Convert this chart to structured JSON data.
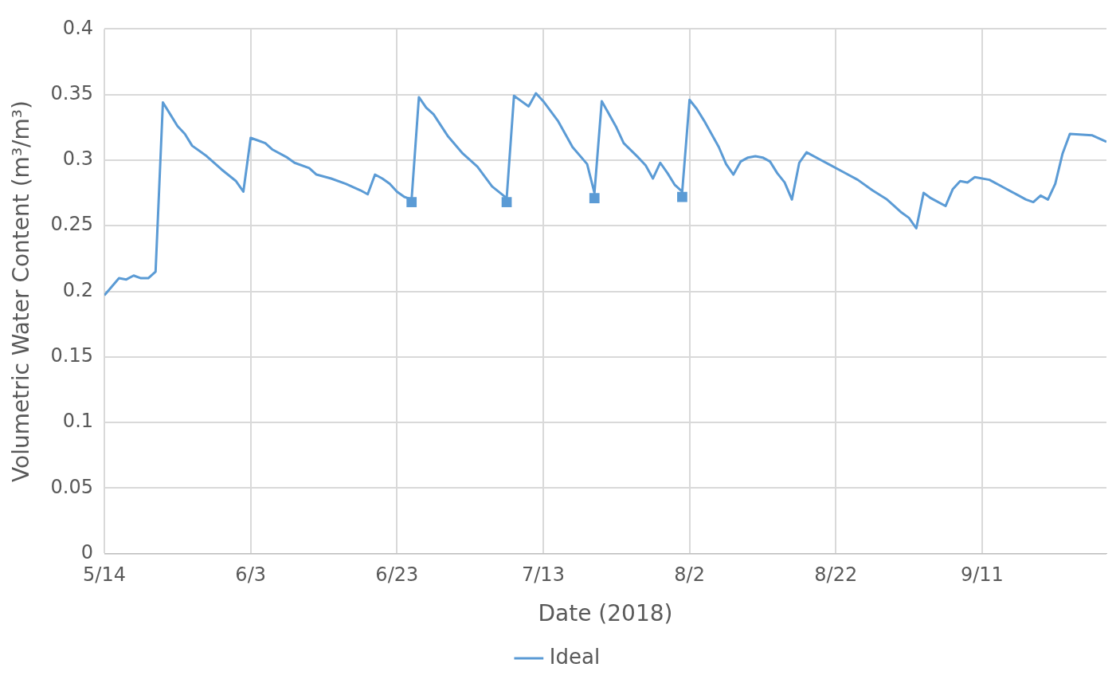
{
  "chart_data": {
    "type": "line",
    "xlabel": "Date (2018)",
    "ylabel": "Volumetric Water Content (m³/m³)",
    "xlim": [
      "--05-14",
      "--09-28"
    ],
    "xticks": [
      {
        "value": "--05-14",
        "label": "5/14"
      },
      {
        "value": "--06-03",
        "label": "6/3"
      },
      {
        "value": "--06-23",
        "label": "6/23"
      },
      {
        "value": "--07-13",
        "label": "7/13"
      },
      {
        "value": "--08-02",
        "label": "8/2"
      },
      {
        "value": "--08-22",
        "label": "8/22"
      },
      {
        "value": "--09-11",
        "label": "9/11"
      }
    ],
    "ylim": [
      0,
      0.4
    ],
    "yticks": [
      0,
      0.05,
      0.1,
      0.15,
      0.2,
      0.25,
      0.3,
      0.35,
      0.4
    ],
    "grid": true,
    "legend": "bottom",
    "marker": "none",
    "line_style": "solid",
    "series": [
      {
        "name": "Ideal",
        "color": "#5b9bd5",
        "type": "line",
        "x": [
          "--05-14",
          "--05-16",
          "--05-17",
          "--05-18",
          "--05-19",
          "--05-20",
          "--05-21",
          "--05-22",
          "--05-23",
          "--05-24",
          "--05-25",
          "--05-26",
          "--05-28",
          "--05-30",
          "--06-01",
          "--06-02",
          "--06-03",
          "--06-04",
          "--06-05",
          "--06-06",
          "--06-08",
          "--06-09",
          "--06-11",
          "--06-12",
          "--06-14",
          "--06-16",
          "--06-18",
          "--06-19",
          "--06-20",
          "--06-21",
          "--06-22",
          "--06-23",
          "--06-24",
          "--06-25",
          "--06-26",
          "--06-27",
          "--06-28",
          "--06-30",
          "--07-02",
          "--07-04",
          "--07-06",
          "--07-08",
          "--07-09",
          "--07-10",
          "--07-11",
          "--07-12",
          "--07-13",
          "--07-15",
          "--07-17",
          "--07-19",
          "--07-20",
          "--07-21",
          "--07-23",
          "--07-24",
          "--07-26",
          "--07-27",
          "--07-28",
          "--07-29",
          "--07-30",
          "--07-31",
          "--08-01",
          "--08-02",
          "--08-03",
          "--08-04",
          "--08-06",
          "--08-07",
          "--08-08",
          "--08-09",
          "--08-10",
          "--08-11",
          "--08-12",
          "--08-13",
          "--08-14",
          "--08-15",
          "--08-16",
          "--08-17",
          "--08-18",
          "--08-20",
          "--08-21",
          "--08-23",
          "--08-25",
          "--08-27",
          "--08-29",
          "--08-31",
          "--09-01",
          "--09-02",
          "--09-03",
          "--09-04",
          "--09-06",
          "--09-07",
          "--09-08",
          "--09-09",
          "--09-10",
          "--09-12",
          "--09-14",
          "--09-16",
          "--09-17",
          "--09-18",
          "--09-19",
          "--09-20",
          "--09-21",
          "--09-22",
          "--09-23",
          "--09-26",
          "--09-28"
        ],
        "values": [
          0.197,
          0.21,
          0.209,
          0.212,
          0.21,
          0.21,
          0.215,
          0.344,
          0.335,
          0.326,
          0.32,
          0.311,
          0.303,
          0.293,
          0.284,
          0.276,
          0.317,
          0.315,
          0.313,
          0.308,
          0.302,
          0.298,
          0.294,
          0.289,
          0.286,
          0.282,
          0.277,
          0.274,
          0.289,
          0.286,
          0.282,
          0.276,
          0.272,
          0.27,
          0.348,
          0.34,
          0.335,
          0.318,
          0.305,
          0.295,
          0.28,
          0.271,
          0.349,
          0.345,
          0.341,
          0.351,
          0.345,
          0.33,
          0.31,
          0.297,
          0.275,
          0.345,
          0.325,
          0.313,
          0.302,
          0.296,
          0.286,
          0.298,
          0.29,
          0.281,
          0.276,
          0.346,
          0.339,
          0.33,
          0.31,
          0.297,
          0.289,
          0.299,
          0.302,
          0.303,
          0.302,
          0.299,
          0.29,
          0.283,
          0.27,
          0.298,
          0.306,
          0.3,
          0.297,
          0.291,
          0.285,
          0.277,
          0.27,
          0.26,
          0.256,
          0.248,
          0.275,
          0.271,
          0.265,
          0.278,
          0.284,
          0.283,
          0.287,
          0.285,
          0.279,
          0.273,
          0.27,
          0.268,
          0.273,
          0.27,
          0.282,
          0.305,
          0.32,
          0.319,
          0.314
        ]
      },
      {
        "color": "#5b9bd5",
        "type": "scatter",
        "marker": "square",
        "x": [
          "--06-25",
          "--07-08",
          "--07-20",
          "--08-01"
        ],
        "values": [
          0.268,
          0.268,
          0.271,
          0.272
        ]
      }
    ]
  }
}
